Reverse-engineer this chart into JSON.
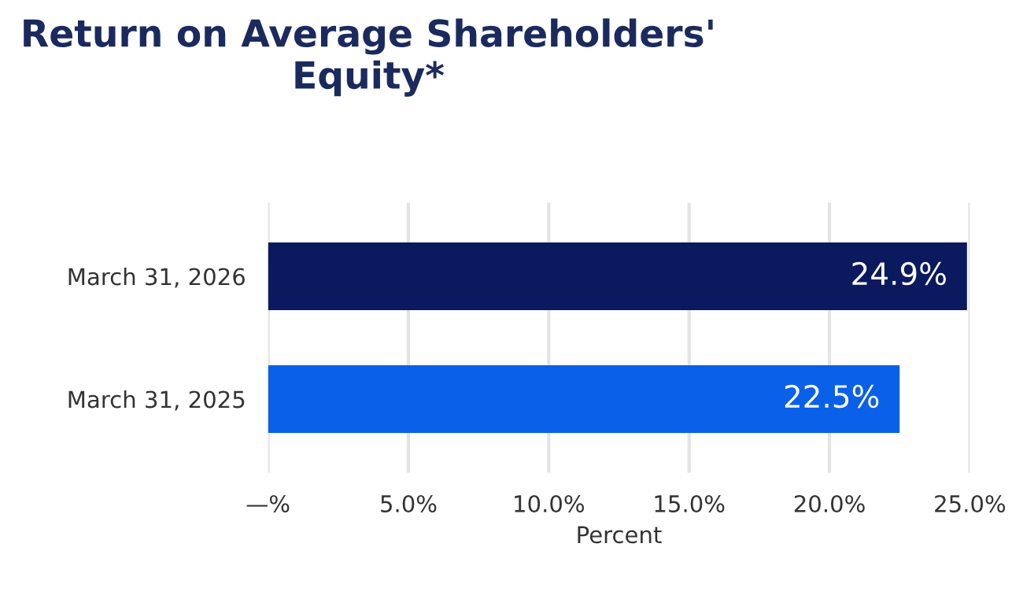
{
  "chart_data": {
    "type": "bar",
    "orientation": "horizontal",
    "title": "Return on Average Shareholders' Equity*",
    "xlabel": "Percent",
    "categories": [
      "March 31, 2026",
      "March 31, 2025"
    ],
    "values": [
      24.9,
      22.5
    ],
    "colors": [
      "#0b1a5e",
      "#0a60e8"
    ],
    "value_labels": [
      "24.9%",
      "22.5%"
    ],
    "xlim": [
      0,
      25
    ],
    "xticks": [
      {
        "value": 0,
        "label": "—%"
      },
      {
        "value": 5,
        "label": "5.0%"
      },
      {
        "value": 10,
        "label": "10.0%"
      },
      {
        "value": 15,
        "label": "15.0%"
      },
      {
        "value": 20,
        "label": "20.0%"
      },
      {
        "value": 25,
        "label": "25.0%"
      }
    ],
    "grid": "x",
    "legend": false
  }
}
